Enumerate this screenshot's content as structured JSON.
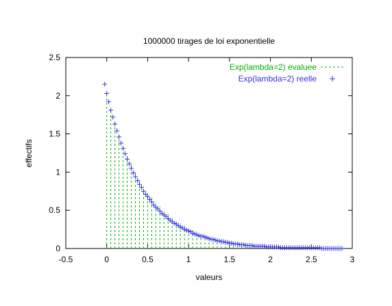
{
  "chart_data": {
    "type": "bar",
    "title": "1000000 tirages de loi exponentielle",
    "xlabel": "valeurs",
    "ylabel": "effectifs",
    "xlim": [
      -0.5,
      3
    ],
    "ylim": [
      0,
      2.5
    ],
    "xticks": [
      "-0.5",
      "0",
      "0.5",
      "1",
      "1.5",
      "2",
      "2.5",
      "3"
    ],
    "yticks": [
      "0",
      "0.5",
      "1",
      "1.5",
      "2",
      "2.5"
    ],
    "grid": false,
    "legend_position": "top-right",
    "series": [
      {
        "name": "Exp(lambda=2) evaluee",
        "style": "impulses-dashed",
        "color": "#00b000",
        "x": [
          0.0,
          0.05,
          0.1,
          0.15,
          0.2,
          0.25,
          0.3,
          0.35,
          0.4,
          0.45,
          0.5,
          0.55,
          0.6,
          0.65,
          0.7,
          0.75,
          0.8,
          0.85,
          0.9,
          0.95,
          1.0,
          1.05,
          1.1,
          1.15,
          1.2,
          1.25,
          1.3,
          1.35,
          1.4,
          1.45,
          1.5,
          1.55,
          1.6,
          1.65,
          1.7,
          1.75,
          1.8,
          1.85,
          1.9,
          1.95,
          2.0,
          2.05,
          2.1,
          2.15,
          2.2,
          2.25,
          2.3,
          2.35,
          2.4,
          2.45,
          2.5,
          2.55,
          2.6,
          2.65,
          2.7,
          2.75,
          2.8,
          2.85,
          2.9
        ],
        "y": [
          2.0,
          1.81,
          1.64,
          1.48,
          1.34,
          1.21,
          1.1,
          0.99,
          0.9,
          0.81,
          0.74,
          0.67,
          0.6,
          0.55,
          0.49,
          0.45,
          0.4,
          0.37,
          0.33,
          0.3,
          0.27,
          0.24,
          0.22,
          0.2,
          0.18,
          0.16,
          0.15,
          0.13,
          0.12,
          0.11,
          0.1,
          0.09,
          0.08,
          0.07,
          0.07,
          0.06,
          0.05,
          0.05,
          0.04,
          0.04,
          0.04,
          0.03,
          0.03,
          0.03,
          0.02,
          0.02,
          0.02,
          0.02,
          0.02,
          0.01,
          0.01,
          0.01,
          0.01,
          0.01,
          0.01,
          0.01,
          0.01,
          0.01,
          0.01
        ]
      },
      {
        "name": "Exp(lambda=2) reelle",
        "style": "points-plus",
        "color": "#3030e0",
        "x": [
          -0.025,
          0.0,
          0.025,
          0.05,
          0.075,
          0.1,
          0.125,
          0.15,
          0.175,
          0.2,
          0.225,
          0.25,
          0.275,
          0.3,
          0.325,
          0.35,
          0.375,
          0.4,
          0.425,
          0.45,
          0.475,
          0.5,
          0.525,
          0.55,
          0.575,
          0.6,
          0.625,
          0.65,
          0.675,
          0.7,
          0.725,
          0.75,
          0.775,
          0.8,
          0.825,
          0.85,
          0.875,
          0.9,
          0.925,
          0.95,
          0.975,
          1.0,
          1.025,
          1.05,
          1.075,
          1.1,
          1.125,
          1.15,
          1.175,
          1.2,
          1.225,
          1.25,
          1.275,
          1.3,
          1.325,
          1.35,
          1.375,
          1.4,
          1.425,
          1.45,
          1.475,
          1.5,
          1.525,
          1.55,
          1.575,
          1.6,
          1.625,
          1.65,
          1.675,
          1.7,
          1.725,
          1.75,
          1.775,
          1.8,
          1.825,
          1.85,
          1.875,
          1.9,
          1.925,
          1.95,
          1.975,
          2.0,
          2.025,
          2.05,
          2.075,
          2.1,
          2.125,
          2.15,
          2.175,
          2.2,
          2.225,
          2.25,
          2.275,
          2.3,
          2.325,
          2.35,
          2.375,
          2.4,
          2.425,
          2.45,
          2.475,
          2.5,
          2.525,
          2.55,
          2.575,
          2.6,
          2.625,
          2.65,
          2.675,
          2.7,
          2.725,
          2.75,
          2.775,
          2.8,
          2.825,
          2.85,
          2.875
        ],
        "y": [
          2.15,
          2.03,
          1.92,
          1.81,
          1.72,
          1.63,
          1.54,
          1.46,
          1.38,
          1.31,
          1.24,
          1.17,
          1.11,
          1.05,
          0.99,
          0.94,
          0.89,
          0.84,
          0.8,
          0.75,
          0.71,
          0.68,
          0.64,
          0.61,
          0.57,
          0.54,
          0.52,
          0.49,
          0.46,
          0.44,
          0.42,
          0.39,
          0.37,
          0.35,
          0.33,
          0.32,
          0.3,
          0.28,
          0.27,
          0.25,
          0.24,
          0.23,
          0.22,
          0.2,
          0.19,
          0.18,
          0.17,
          0.16,
          0.16,
          0.15,
          0.14,
          0.13,
          0.12,
          0.12,
          0.11,
          0.1,
          0.1,
          0.09,
          0.09,
          0.08,
          0.08,
          0.07,
          0.07,
          0.06,
          0.06,
          0.06,
          0.05,
          0.05,
          0.05,
          0.04,
          0.04,
          0.04,
          0.04,
          0.03,
          0.03,
          0.03,
          0.03,
          0.03,
          0.03,
          0.02,
          0.02,
          0.02,
          0.02,
          0.02,
          0.02,
          0.02,
          0.01,
          0.01,
          0.01,
          0.01,
          0.01,
          0.01,
          0.01,
          0.01,
          0.01,
          0.01,
          0.01,
          0.01,
          0.01,
          0.01,
          0.01,
          0.01,
          0.01,
          0.01,
          0.01,
          0.01,
          0.0,
          0.0,
          0.0,
          0.0,
          0.0,
          0.0,
          0.0,
          0.0,
          0.0,
          0.0,
          0.0
        ]
      }
    ]
  }
}
